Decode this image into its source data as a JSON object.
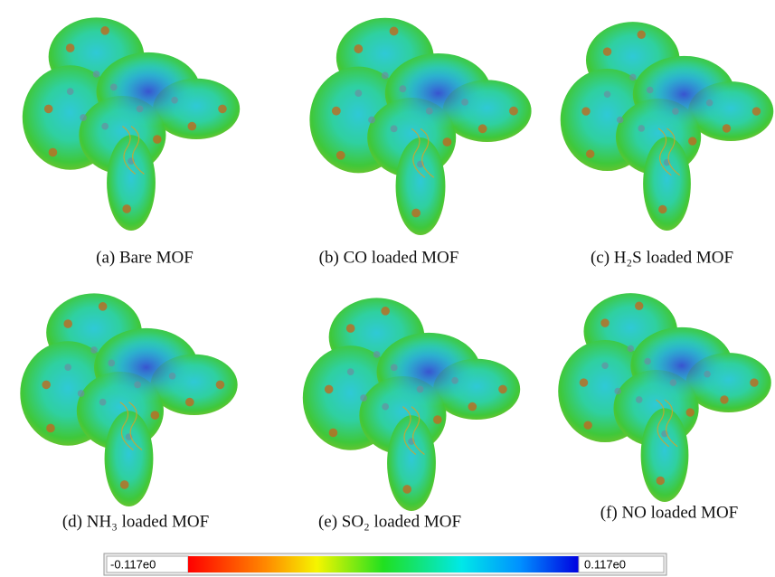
{
  "panels": [
    {
      "caption": "(a) Bare MOF"
    },
    {
      "caption": "(b) CO loaded MOF"
    },
    {
      "caption": "(c) H₂S loaded MOF"
    },
    {
      "caption": "(d) NH₃ loaded MOF"
    },
    {
      "caption": "(e) SO₂ loaded MOF"
    },
    {
      "caption": "(f) NO loaded MOF"
    }
  ],
  "colorbar": {
    "min_label": "-0.117e0",
    "max_label": "0.117e0"
  }
}
